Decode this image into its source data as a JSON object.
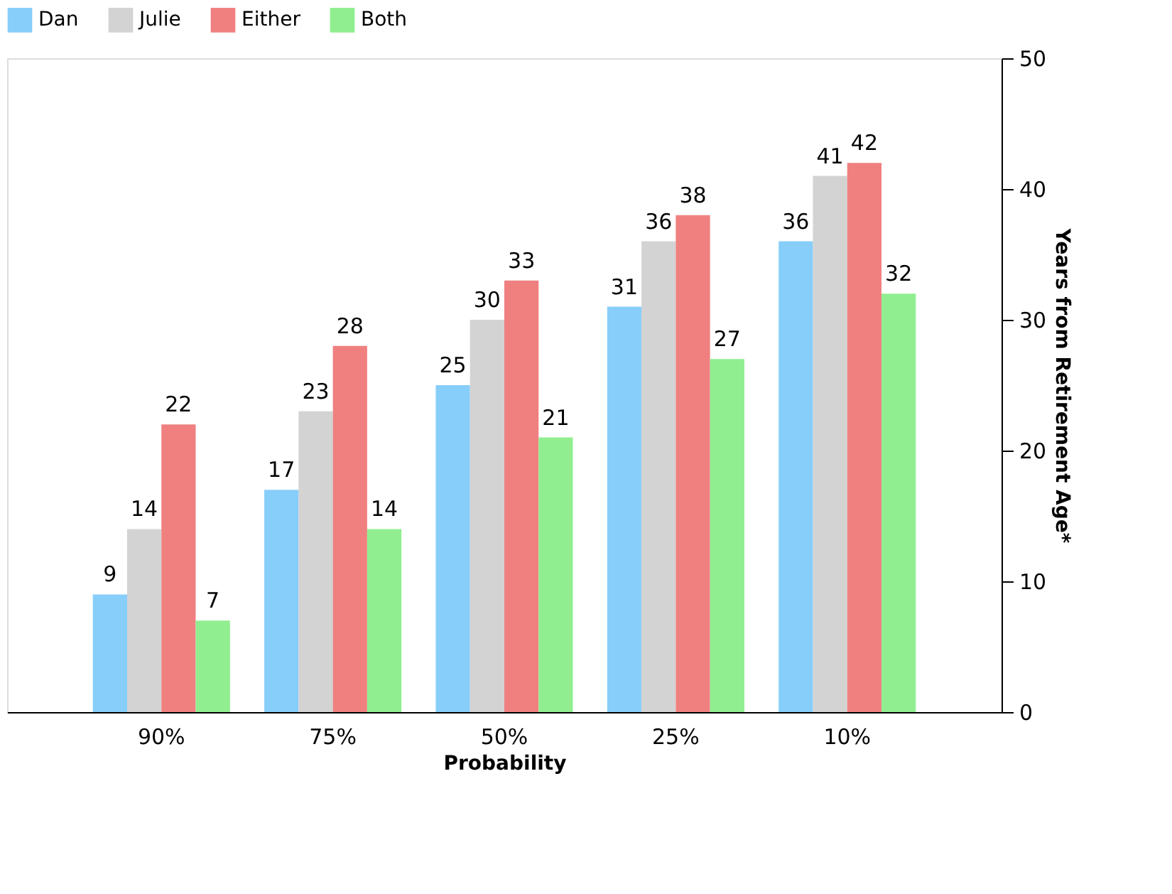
{
  "chart_data": {
    "type": "bar",
    "xlabel": "Probability",
    "ylabel": "Years from Retirement Age*",
    "categories": [
      "90%",
      "75%",
      "50%",
      "25%",
      "10%"
    ],
    "series": [
      {
        "name": "Dan",
        "color": "#87cefa",
        "values": [
          9,
          17,
          25,
          31,
          36
        ]
      },
      {
        "name": "Julie",
        "color": "#d3d3d3",
        "values": [
          14,
          23,
          30,
          36,
          41
        ]
      },
      {
        "name": "Either",
        "color": "#f08080",
        "values": [
          22,
          28,
          33,
          38,
          42
        ]
      },
      {
        "name": "Both",
        "color": "#90ee90",
        "values": [
          7,
          14,
          21,
          27,
          32
        ]
      }
    ],
    "ylim": [
      0,
      50
    ],
    "yticks": [
      0,
      10,
      20,
      30,
      40,
      50
    ],
    "data_labels": true,
    "grid": false,
    "legend": "top"
  }
}
